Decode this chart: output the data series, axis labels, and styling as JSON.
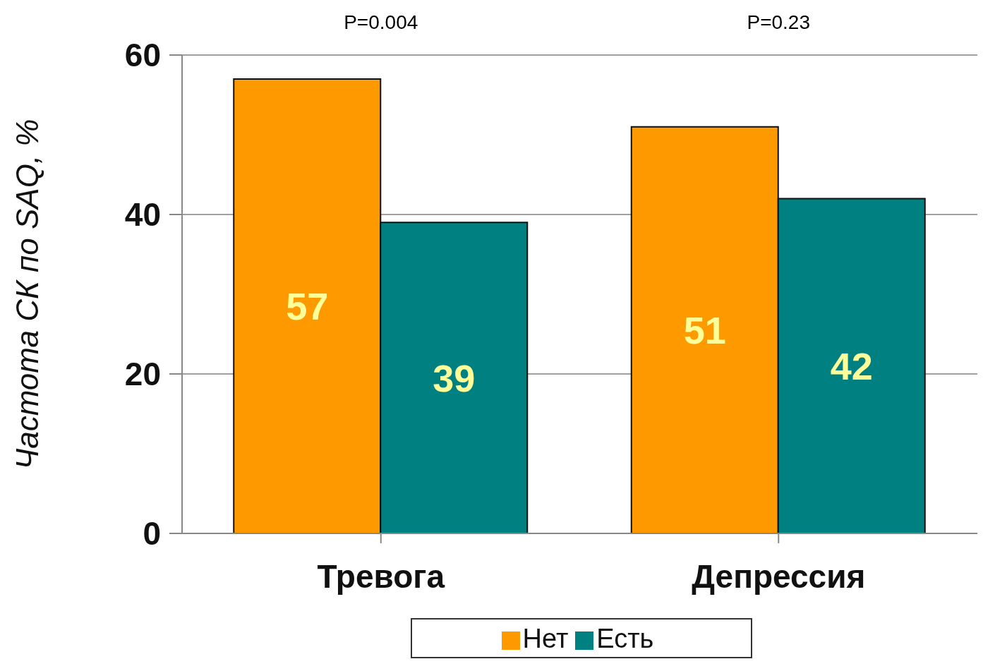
{
  "chart_data": {
    "type": "bar",
    "ylabel": "Частота СК по SAQ, %",
    "categories": [
      "Тревога",
      "Депрессия"
    ],
    "series": [
      {
        "name": "Нет",
        "color": "#ff9900",
        "values": [
          57,
          51
        ]
      },
      {
        "name": "Есть",
        "color": "#008080",
        "values": [
          39,
          42
        ]
      }
    ],
    "ylim": [
      0,
      60
    ],
    "yticks": [
      0,
      20,
      40,
      60
    ],
    "grid": "y",
    "legend": "bottom",
    "data_labels": true,
    "annotations": [
      "P=0.004",
      "P=0.23"
    ]
  }
}
